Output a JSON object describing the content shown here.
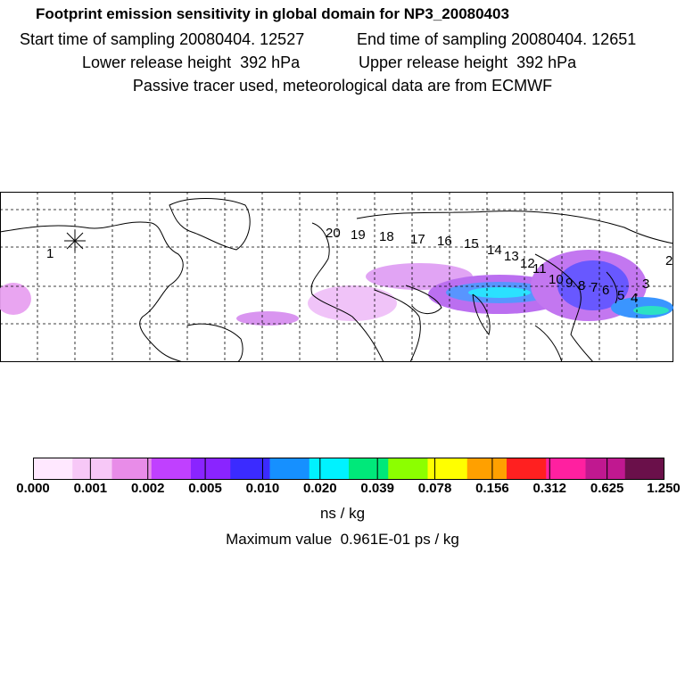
{
  "header": {
    "title": "Footprint emission sensitivity in global domain for NP3_20080403",
    "start_sampling": "Start time of sampling 20080404. 12527",
    "end_sampling": "End time of sampling 20080404. 12651",
    "lower_release": "Lower release height  392 hPa",
    "upper_release": "Upper release height  392 hPa",
    "tracer_note": "Passive tracer used, meteorological data are from ECMWF"
  },
  "map": {
    "track_labels": [
      "1",
      "2",
      "3",
      "4",
      "5",
      "6",
      "7",
      "8",
      "9",
      "10",
      "11",
      "12",
      "13",
      "14",
      "15",
      "16",
      "17",
      "18",
      "19",
      "20"
    ],
    "colors": {
      "coast": "#000000",
      "grid": "#000000"
    }
  },
  "colorbar": {
    "ticks": [
      "0.000",
      "0.001",
      "0.002",
      "0.005",
      "0.010",
      "0.020",
      "0.039",
      "0.078",
      "0.156",
      "0.312",
      "0.625",
      "1.250"
    ],
    "colors": [
      "#ffe8ff",
      "#f7c8f7",
      "#e88ce8",
      "#c040ff",
      "#8a24ff",
      "#3b2bff",
      "#1690ff",
      "#00f2ff",
      "#00e87a",
      "#8cff00",
      "#ffff00",
      "#ffa000",
      "#ff2020",
      "#ff20a0",
      "#c01890",
      "#6a104a"
    ],
    "unit": "ns / kg",
    "max_value": "Maximum value  0.961E-01 ps / kg"
  }
}
